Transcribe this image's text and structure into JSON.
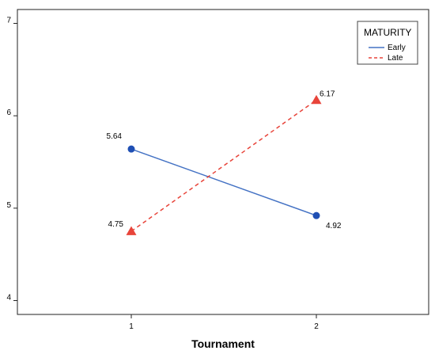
{
  "chart_data": {
    "type": "line",
    "title": "",
    "xlabel": "Tournament",
    "ylabel": "",
    "categories": [
      "1",
      "2"
    ],
    "x_ticks": [
      "1",
      "2"
    ],
    "y_ticks": [
      "4",
      "5",
      "6",
      "7"
    ],
    "ylim": [
      3.85,
      7.15
    ],
    "grid": false,
    "legend": {
      "title": "MATURITY",
      "position": "top-right",
      "entries": [
        "Early",
        "Late"
      ]
    },
    "series": [
      {
        "name": "Early",
        "values": [
          5.64,
          4.92
        ],
        "labels": [
          "5.64",
          "4.92"
        ],
        "color": "#4472c4",
        "line_style": "solid",
        "marker": "circle",
        "marker_color": "#1f4fb4"
      },
      {
        "name": "Late",
        "values": [
          4.75,
          6.17
        ],
        "labels": [
          "4.75",
          "6.17"
        ],
        "color": "#e8443a",
        "line_style": "dashed",
        "marker": "triangle",
        "marker_color": "#e8443a"
      }
    ]
  }
}
